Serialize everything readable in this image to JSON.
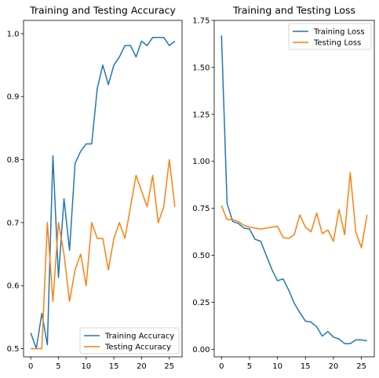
{
  "colors": {
    "training": "#1f77b4",
    "testing": "#ff7f0e"
  },
  "chart_data": [
    {
      "type": "line",
      "title": "Training and Testing Accuracy",
      "xlabel": "",
      "ylabel": "",
      "xlim": [
        -1.3,
        27.3
      ],
      "ylim": [
        0.487,
        1.021
      ],
      "xticks": [
        0,
        5,
        10,
        15,
        20,
        25
      ],
      "xtick_labels": [
        "0",
        "5",
        "10",
        "15",
        "20",
        "25"
      ],
      "yticks": [
        0.5,
        0.6,
        0.7,
        0.8,
        0.9,
        1.0
      ],
      "ytick_labels": [
        "0.5",
        "0.6",
        "0.7",
        "0.8",
        "0.9",
        "1.0"
      ],
      "legend_position": "lower-right",
      "grid": false,
      "series": [
        {
          "name": "Training Accuracy",
          "color_key": "training",
          "x": [
            0,
            1,
            2,
            3,
            4,
            5,
            6,
            7,
            8,
            9,
            10,
            11,
            12,
            13,
            14,
            15,
            16,
            17,
            18,
            19,
            20,
            21,
            22,
            23,
            24,
            25,
            26
          ],
          "values": [
            0.525,
            0.5,
            0.556,
            0.506,
            0.806,
            0.613,
            0.738,
            0.656,
            0.794,
            0.813,
            0.825,
            0.825,
            0.913,
            0.95,
            0.919,
            0.95,
            0.963,
            0.981,
            0.981,
            0.963,
            0.988,
            0.981,
            0.994,
            0.994,
            0.994,
            0.981,
            0.988
          ]
        },
        {
          "name": "Testing Accuracy",
          "color_key": "testing",
          "x": [
            0,
            1,
            2,
            3,
            4,
            5,
            6,
            7,
            8,
            9,
            10,
            11,
            12,
            13,
            14,
            15,
            16,
            17,
            18,
            19,
            20,
            21,
            22,
            23,
            24,
            25,
            26
          ],
          "values": [
            0.5,
            0.5,
            0.5,
            0.7,
            0.575,
            0.7,
            0.65,
            0.575,
            0.625,
            0.65,
            0.6,
            0.7,
            0.675,
            0.675,
            0.625,
            0.675,
            0.7,
            0.675,
            0.725,
            0.775,
            0.75,
            0.725,
            0.775,
            0.7,
            0.725,
            0.8,
            0.725
          ]
        }
      ]
    },
    {
      "type": "line",
      "title": "Training and Testing Loss",
      "xlabel": "",
      "ylabel": "",
      "xlim": [
        -1.3,
        27.3
      ],
      "ylim": [
        -0.04,
        1.75
      ],
      "xticks": [
        0,
        5,
        10,
        15,
        20,
        25
      ],
      "xtick_labels": [
        "0",
        "5",
        "10",
        "15",
        "20",
        "25"
      ],
      "yticks": [
        0,
        0.25,
        0.5,
        0.75,
        1.0,
        1.25,
        1.5,
        1.75
      ],
      "ytick_labels": [
        "0.00",
        "0.25",
        "0.50",
        "0.75",
        "1.00",
        "1.25",
        "1.50",
        "1.75"
      ],
      "legend_position": "upper-right",
      "grid": false,
      "series": [
        {
          "name": "Training Loss",
          "color_key": "training",
          "x": [
            0,
            1,
            2,
            3,
            4,
            5,
            6,
            7,
            8,
            9,
            10,
            11,
            12,
            13,
            14,
            15,
            16,
            17,
            18,
            19,
            20,
            21,
            22,
            23,
            24,
            25,
            26
          ],
          "values": [
            1.67,
            0.775,
            0.68,
            0.67,
            0.645,
            0.64,
            0.585,
            0.575,
            0.5,
            0.425,
            0.365,
            0.375,
            0.315,
            0.245,
            0.195,
            0.15,
            0.145,
            0.12,
            0.07,
            0.095,
            0.065,
            0.055,
            0.03,
            0.03,
            0.05,
            0.05,
            0.045
          ]
        },
        {
          "name": "Testing Loss",
          "color_key": "testing",
          "x": [
            0,
            1,
            2,
            3,
            4,
            5,
            6,
            7,
            8,
            9,
            10,
            11,
            12,
            13,
            14,
            15,
            16,
            17,
            18,
            19,
            20,
            21,
            22,
            23,
            24,
            25,
            26
          ],
          "values": [
            0.765,
            0.69,
            0.69,
            0.68,
            0.66,
            0.65,
            0.645,
            0.64,
            0.645,
            0.65,
            0.655,
            0.595,
            0.59,
            0.61,
            0.715,
            0.65,
            0.625,
            0.725,
            0.615,
            0.635,
            0.575,
            0.745,
            0.61,
            0.94,
            0.625,
            0.54,
            0.715
          ]
        }
      ]
    }
  ]
}
